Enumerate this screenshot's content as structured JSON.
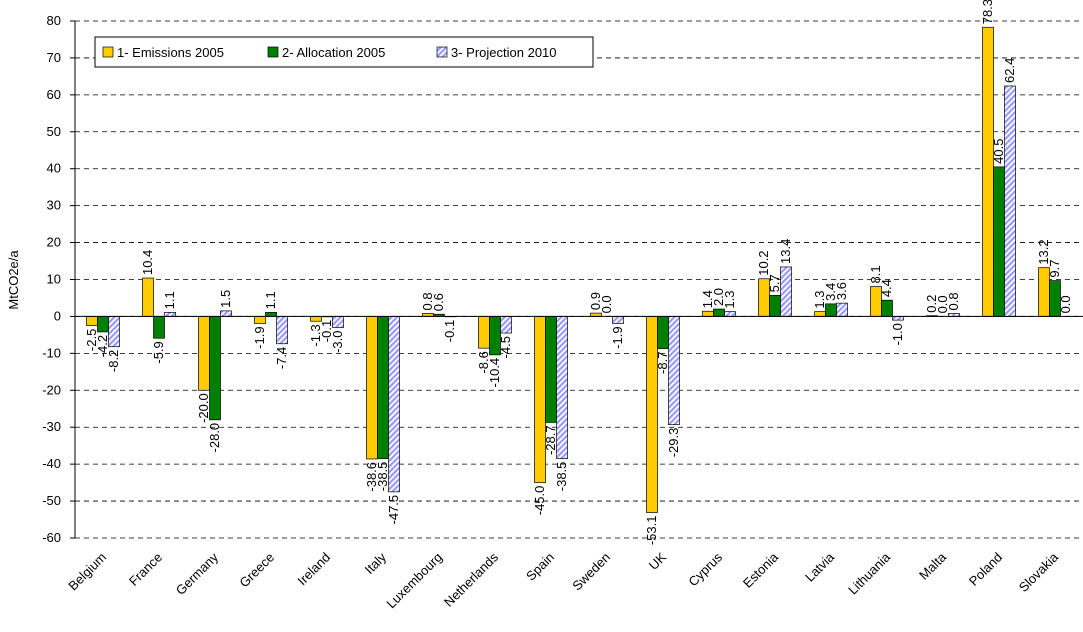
{
  "chart_data": {
    "type": "bar",
    "y_label": "MtCO2e/a",
    "categories": [
      "Belgium",
      "France",
      "Germany",
      "Greece",
      "Ireland",
      "Italy",
      "Luxembourg",
      "Netherlands",
      "Spain",
      "Sweden",
      "UK",
      "Cyprus",
      "Estonia",
      "Latvia",
      "Lithuania",
      "Malta",
      "Poland",
      "Slovakia"
    ],
    "series": [
      {
        "name": "1- Emissions 2005",
        "color": "#ffcc00",
        "values": [
          -2.5,
          10.4,
          -20.0,
          -1.9,
          -1.3,
          -38.6,
          0.8,
          -8.6,
          -45.0,
          0.9,
          -53.1,
          1.4,
          10.2,
          1.3,
          8.1,
          0.2,
          78.3,
          13.2
        ],
        "value_labels": [
          "-2.5",
          "10.4",
          "-20.0",
          "-1.9",
          "-1.3",
          "-38.6",
          "0.8",
          "-8.6",
          "-45.0",
          "0.9",
          "-53.1",
          "1.4",
          "10.2",
          "1.3",
          "8.1",
          "0.2",
          "78.3",
          "13.2"
        ]
      },
      {
        "name": "2- Allocation 2005",
        "color": "#008000",
        "values": [
          -4.2,
          -5.9,
          -28.0,
          1.1,
          -0.1,
          -38.5,
          0.6,
          -10.4,
          -28.7,
          0.0,
          -8.7,
          2.0,
          5.7,
          3.4,
          4.4,
          0.0,
          40.5,
          9.7
        ],
        "value_labels": [
          "-4.2",
          "-5.9",
          "-28.0",
          "1.1",
          "-0.1",
          "-38.5",
          "0.6",
          "-10.4",
          "-28.7",
          "0.0",
          "-8.7",
          "2.0",
          "5.7",
          "3.4",
          "4.4",
          "0.0",
          "40.5",
          "9.7"
        ]
      },
      {
        "name": "3- Projection 2010",
        "color": "#9999ff",
        "values": [
          -8.2,
          1.1,
          1.5,
          -7.4,
          -3.0,
          -47.5,
          -0.1,
          -4.5,
          -38.5,
          -1.9,
          -29.3,
          1.3,
          13.4,
          3.6,
          -1.0,
          0.8,
          62.4,
          0.0
        ],
        "value_labels": [
          "-8.2",
          "1.1",
          "1.5",
          "-7.4",
          "-3.0",
          "-47.5",
          "-0.1",
          "-4.5",
          "-38.5",
          "-1.9",
          "-29.3",
          "1.3",
          "13.4",
          "3.6",
          "-1.0",
          "0.8",
          "62.4",
          "0.0"
        ]
      }
    ],
    "ylim": [
      -60,
      80
    ],
    "yticks": [
      -60,
      -50,
      -40,
      -30,
      -20,
      -10,
      0,
      10,
      20,
      30,
      40,
      50,
      60,
      70,
      80
    ],
    "grid": true,
    "legend": "upper left"
  }
}
